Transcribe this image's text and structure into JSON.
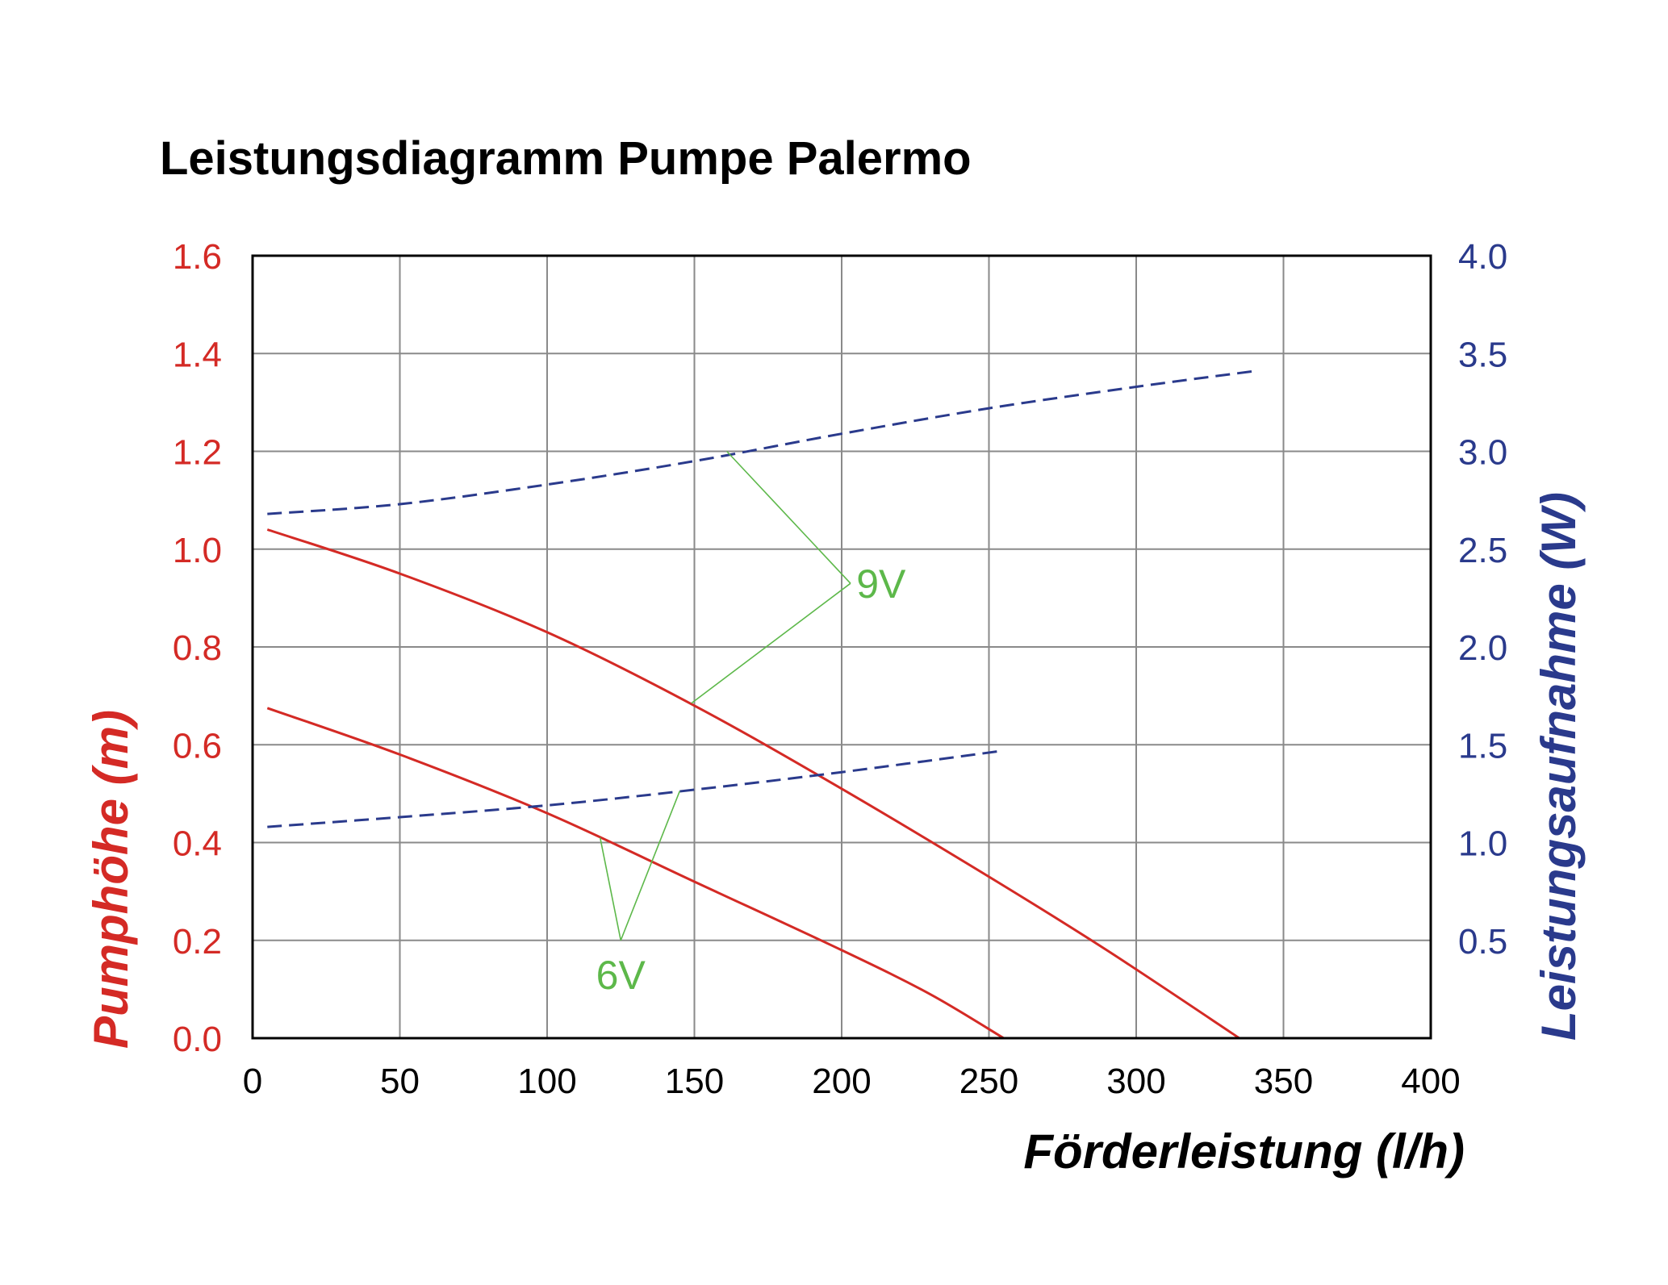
{
  "chart_data": {
    "type": "line",
    "title": "Leistungsdiagramm Pumpe Palermo",
    "xlabel": "Förderleistung (l/h)",
    "ylabel": "Pumphöhe (m)",
    "y2label": "Leistungsaufnahme (W)",
    "xlim": [
      0,
      400
    ],
    "ylim": [
      0,
      1.6
    ],
    "y2lim": [
      0,
      4.0
    ],
    "grid": true,
    "x_ticks": [
      "0",
      "50",
      "100",
      "150",
      "200",
      "250",
      "300",
      "350",
      "400"
    ],
    "y_ticks": [
      "0.0",
      "0.2",
      "0.4",
      "0.6",
      "0.8",
      "1.0",
      "1.2",
      "1.4",
      "1.6"
    ],
    "y2_ticks": [
      "0.5",
      "1.0",
      "1.5",
      "2.0",
      "2.5",
      "3.0",
      "3.5",
      "4.0"
    ],
    "colors": {
      "head": "#d42a25",
      "power": "#2a3a8c",
      "annotation": "#5db84a",
      "grid": "#8a8a8a",
      "frame": "#000000",
      "xtitle": "#000000"
    },
    "series": [
      {
        "axis": "left",
        "style": "solid",
        "x": [
          5,
          50,
          100,
          150,
          200,
          250,
          290,
          335
        ],
        "y": [
          1.04,
          0.95,
          0.83,
          0.68,
          0.51,
          0.33,
          0.18,
          0.0
        ]
      },
      {
        "axis": "left",
        "style": "solid",
        "x": [
          5,
          50,
          100,
          150,
          200,
          230,
          255
        ],
        "y": [
          0.675,
          0.58,
          0.46,
          0.32,
          0.18,
          0.09,
          0.0
        ]
      },
      {
        "axis": "right",
        "style": "dashed",
        "x": [
          5,
          50,
          100,
          150,
          200,
          250,
          300,
          340
        ],
        "y": [
          2.68,
          2.73,
          2.83,
          2.95,
          3.09,
          3.22,
          3.33,
          3.41
        ]
      },
      {
        "axis": "right",
        "style": "dashed",
        "x": [
          5,
          50,
          100,
          150,
          200,
          255
        ],
        "y": [
          1.08,
          1.13,
          1.19,
          1.27,
          1.36,
          1.47
        ]
      }
    ],
    "annotations": [
      {
        "text": "9V",
        "label_x": 205,
        "label_y": 0.93,
        "vertex_x": 203,
        "vertex_y": 0.93,
        "leaders": [
          {
            "x": 161,
            "y": 1.2
          },
          {
            "x": 149,
            "y": 0.685
          }
        ]
      },
      {
        "text": "6V",
        "label_x": 125,
        "label_y": 0.13,
        "vertex_x": 125,
        "vertex_y": 0.2,
        "leaders": [
          {
            "x": 118,
            "y": 0.41
          },
          {
            "x": 145,
            "y": 0.505
          }
        ]
      }
    ]
  }
}
